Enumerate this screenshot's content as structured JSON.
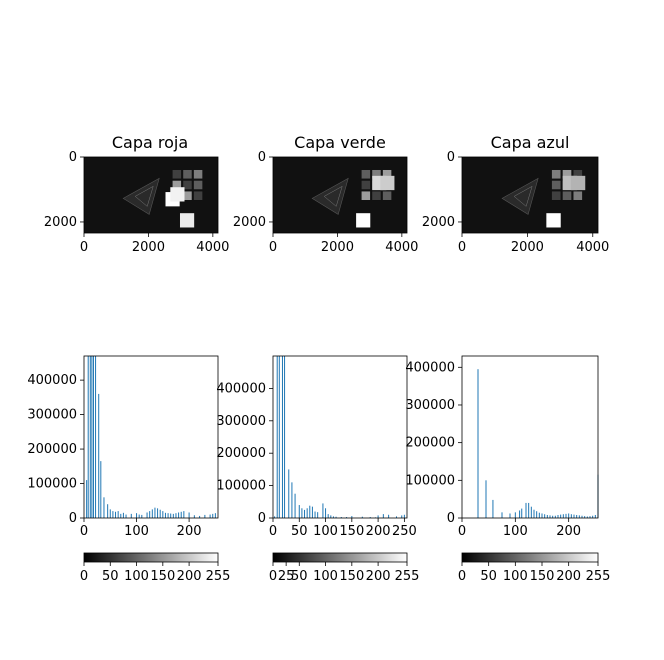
{
  "colors": {
    "bar": "#1f77b4",
    "axis": "#000000",
    "background": "#ffffff",
    "image_dark": "#111111"
  },
  "chart_data": [
    {
      "type": "image",
      "title": "Capa roja",
      "xticks": [
        "0",
        "2000",
        "4000"
      ],
      "yticks": [
        "0",
        "2000"
      ],
      "xlim": [
        0,
        4160
      ],
      "ylim": [
        2340,
        0
      ],
      "bright_squares": [
        {
          "x": 2750,
          "y": 1300,
          "level": 1.0
        },
        {
          "x": 3200,
          "y": 1950,
          "level": 0.92
        },
        {
          "x": 2900,
          "y": 1150,
          "level": 0.95
        }
      ]
    },
    {
      "type": "image",
      "title": "Capa verde",
      "xticks": [
        "0",
        "2000",
        "4000"
      ],
      "yticks": [
        "0",
        "2000"
      ],
      "xlim": [
        0,
        4160
      ],
      "ylim": [
        2340,
        0
      ],
      "bright_squares": [
        {
          "x": 2800,
          "y": 1950,
          "level": 1.0
        },
        {
          "x": 3300,
          "y": 800,
          "level": 0.85
        },
        {
          "x": 3550,
          "y": 800,
          "level": 0.8
        }
      ]
    },
    {
      "type": "image",
      "title": "Capa azul",
      "xticks": [
        "0",
        "2000",
        "4000"
      ],
      "yticks": [
        "0",
        "2000"
      ],
      "xlim": [
        0,
        4160
      ],
      "ylim": [
        2340,
        0
      ],
      "bright_squares": [
        {
          "x": 2800,
          "y": 1950,
          "level": 1.0
        },
        {
          "x": 3300,
          "y": 800,
          "level": 0.75
        },
        {
          "x": 3550,
          "y": 800,
          "level": 0.7
        }
      ]
    },
    {
      "type": "bar",
      "xlim": [
        0,
        255
      ],
      "ylim": [
        0,
        470000
      ],
      "xticks": [
        "0",
        "100",
        "200"
      ],
      "yticks": [
        "0",
        "100000",
        "200000",
        "300000",
        "400000"
      ],
      "x": [
        5,
        8,
        12,
        15,
        18,
        22,
        28,
        32,
        38,
        45,
        50,
        55,
        60,
        65,
        70,
        75,
        80,
        90,
        100,
        105,
        110,
        120,
        125,
        130,
        135,
        140,
        145,
        150,
        155,
        160,
        165,
        170,
        175,
        180,
        185,
        190,
        200,
        210,
        220,
        230,
        240,
        245,
        250
      ],
      "values": [
        110000,
        470000,
        470000,
        470000,
        470000,
        470000,
        360000,
        165000,
        60000,
        40000,
        25000,
        20000,
        18000,
        20000,
        12000,
        15000,
        10000,
        12000,
        14000,
        10000,
        9000,
        16000,
        20000,
        25000,
        30000,
        28000,
        24000,
        20000,
        15000,
        14000,
        13000,
        12000,
        14000,
        16000,
        18000,
        20000,
        16000,
        8000,
        6000,
        9000,
        10000,
        12000,
        14000
      ]
    },
    {
      "type": "bar",
      "xlim": [
        0,
        255
      ],
      "ylim": [
        0,
        500000
      ],
      "xticks": [
        "0",
        "50",
        "100",
        "150",
        "200",
        "250"
      ],
      "yticks": [
        "0",
        "100000",
        "200000",
        "300000",
        "400000"
      ],
      "x": [
        3,
        8,
        12,
        18,
        22,
        30,
        36,
        42,
        50,
        55,
        60,
        65,
        70,
        75,
        80,
        85,
        95,
        100,
        105,
        110,
        115,
        120,
        130,
        140,
        150,
        170,
        185,
        195,
        200,
        210,
        220,
        235,
        245,
        250
      ],
      "values": [
        5000,
        500000,
        500000,
        500000,
        500000,
        150000,
        110000,
        75000,
        40000,
        30000,
        25000,
        30000,
        38000,
        35000,
        20000,
        18000,
        45000,
        30000,
        12000,
        8000,
        5000,
        4000,
        3000,
        3000,
        6000,
        4000,
        3000,
        2000,
        8000,
        12000,
        10000,
        5000,
        8000,
        10000
      ]
    },
    {
      "type": "bar",
      "xlim": [
        0,
        255
      ],
      "ylim": [
        0,
        430000
      ],
      "xticks": [
        "0",
        "100",
        "200"
      ],
      "yticks": [
        "0",
        "100000",
        "200000",
        "300000",
        "400000"
      ],
      "x": [
        30,
        45,
        58,
        75,
        90,
        100,
        108,
        112,
        120,
        125,
        130,
        135,
        140,
        145,
        150,
        155,
        160,
        165,
        170,
        175,
        180,
        185,
        190,
        195,
        200,
        205,
        210,
        215,
        220,
        225,
        230,
        235,
        240,
        245,
        250,
        255
      ],
      "values": [
        395000,
        100000,
        48000,
        15000,
        12000,
        15000,
        20000,
        25000,
        40000,
        40000,
        30000,
        22000,
        18000,
        14000,
        12000,
        10000,
        8000,
        7000,
        6000,
        6000,
        8000,
        9000,
        10000,
        11000,
        12000,
        10000,
        9000,
        8000,
        7000,
        6000,
        5000,
        4000,
        5000,
        6000,
        8000,
        115000
      ]
    },
    {
      "type": "colorbar",
      "range": [
        0,
        255
      ],
      "ticks": [
        "0",
        "50",
        "100",
        "150",
        "200",
        "255"
      ]
    },
    {
      "type": "colorbar",
      "range": [
        0,
        255
      ],
      "ticks": [
        "0",
        "25",
        "50",
        "100",
        "150",
        "200",
        "255"
      ]
    },
    {
      "type": "colorbar",
      "range": [
        0,
        255
      ],
      "ticks": [
        "0",
        "50",
        "100",
        "150",
        "200",
        "255"
      ]
    }
  ]
}
